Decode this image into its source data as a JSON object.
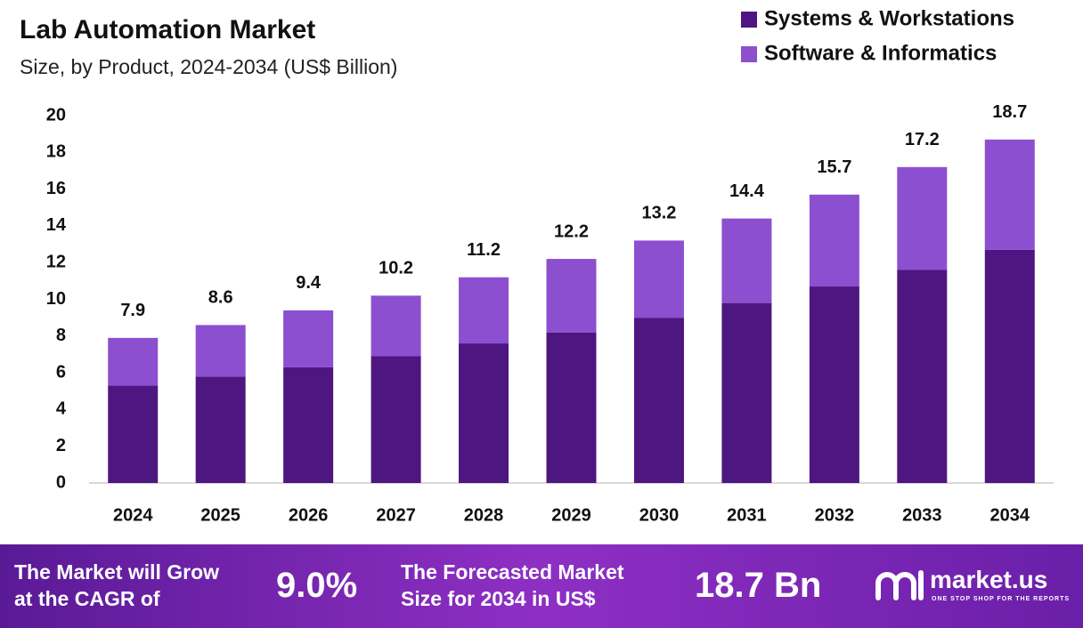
{
  "chart_data": {
    "type": "stacked-bar",
    "title": "Lab Automation Market",
    "subtitle": "Size, by Product, 2024-2034 (US$ Billion)",
    "categories": [
      "2024",
      "2025",
      "2026",
      "2027",
      "2028",
      "2029",
      "2030",
      "2031",
      "2032",
      "2033",
      "2034"
    ],
    "series": [
      {
        "name": "Systems & Workstations",
        "color": "#4e1681",
        "values": [
          5.3,
          5.8,
          6.3,
          6.9,
          7.6,
          8.2,
          9.0,
          9.8,
          10.7,
          11.6,
          12.7
        ]
      },
      {
        "name": "Software & Informatics",
        "color": "#8c4fd0",
        "values": [
          2.6,
          2.8,
          3.1,
          3.3,
          3.6,
          4.0,
          4.2,
          4.6,
          5.0,
          5.6,
          6.0
        ]
      }
    ],
    "totals": [
      7.9,
      8.6,
      9.4,
      10.2,
      11.2,
      12.2,
      13.2,
      14.4,
      15.7,
      17.2,
      18.7
    ],
    "ylim": [
      0,
      20
    ],
    "yticks": [
      0,
      2,
      4,
      6,
      8,
      10,
      12,
      14,
      16,
      18,
      20
    ],
    "grid": false,
    "legend": "top-right"
  },
  "footer": {
    "cagr_text": [
      "The Market will Grow",
      "at the CAGR of"
    ],
    "cagr_value": "9.0%",
    "forecast_text": [
      "The Forecasted Market",
      "Size for 2034 in US$"
    ],
    "forecast_value": "18.7 Bn",
    "brand": "market.us",
    "tagline": "ONE STOP SHOP FOR THE REPORTS"
  }
}
